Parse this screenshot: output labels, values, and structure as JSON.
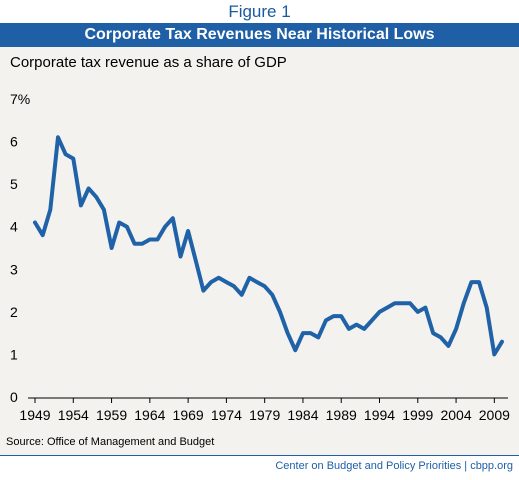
{
  "figure_label": "Figure 1",
  "title": "Corporate Tax Revenues Near Historical Lows",
  "source": "Source: Office of Management and Budget",
  "footer": "Center on Budget and Policy Priorities | cbpp.org",
  "colors": {
    "line": "#1f62a8",
    "title_bar": "#1f5fa6",
    "panel": "#f4f2ee"
  },
  "chart_data": {
    "type": "line",
    "title": "Corporate Tax Revenues Near Historical Lows",
    "subtitle": "Corporate tax revenue as a share of GDP",
    "xlabel": "",
    "ylabel": "",
    "xlim": [
      1949,
      2010
    ],
    "ylim": [
      0,
      7
    ],
    "y_ticks": [
      "0",
      "1",
      "2",
      "3",
      "4",
      "5",
      "6",
      "7%"
    ],
    "x_ticks": [
      "1949",
      "1954",
      "1959",
      "1964",
      "1969",
      "1974",
      "1979",
      "1984",
      "1989",
      "1994",
      "1999",
      "2004",
      "2009"
    ],
    "grid": false,
    "series": [
      {
        "x": [
          1949,
          1950,
          1951,
          1952,
          1953,
          1954,
          1955,
          1956,
          1957,
          1958,
          1959,
          1960,
          1961,
          1962,
          1963,
          1964,
          1965,
          1966,
          1967,
          1968,
          1969,
          1970,
          1971,
          1972,
          1973,
          1974,
          1975,
          1976,
          1977,
          1978,
          1979,
          1980,
          1981,
          1982,
          1983,
          1984,
          1985,
          1986,
          1987,
          1988,
          1989,
          1990,
          1991,
          1992,
          1993,
          1994,
          1995,
          1996,
          1997,
          1998,
          1999,
          2000,
          2001,
          2002,
          2003,
          2004,
          2005,
          2006,
          2007,
          2008,
          2009,
          2010
        ],
        "values": [
          4.1,
          3.8,
          4.4,
          6.1,
          5.7,
          5.6,
          4.5,
          4.9,
          4.7,
          4.4,
          3.5,
          4.1,
          4.0,
          3.6,
          3.6,
          3.7,
          3.7,
          4.0,
          4.2,
          3.3,
          3.9,
          3.2,
          2.5,
          2.7,
          2.8,
          2.7,
          2.6,
          2.4,
          2.8,
          2.7,
          2.6,
          2.4,
          2.0,
          1.5,
          1.1,
          1.5,
          1.5,
          1.4,
          1.8,
          1.9,
          1.9,
          1.6,
          1.7,
          1.6,
          1.8,
          2.0,
          2.1,
          2.2,
          2.2,
          2.2,
          2.0,
          2.1,
          1.5,
          1.4,
          1.2,
          1.6,
          2.2,
          2.7,
          2.7,
          2.1,
          1.0,
          1.3
        ]
      }
    ]
  }
}
